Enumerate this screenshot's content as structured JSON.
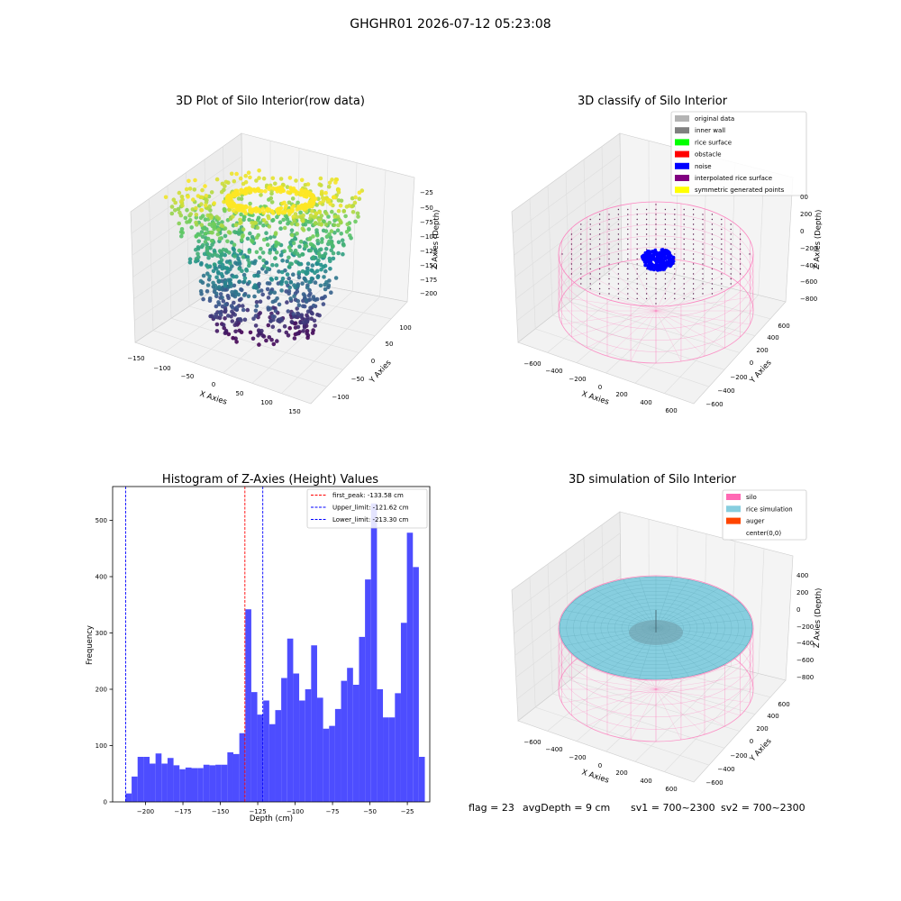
{
  "suptitle": "GHGHR01 2026-07-12 05:23:08",
  "footer": {
    "flag": "flag = 23",
    "avg_depth": "avgDepth = 9 cm",
    "sv1": "sv1 = 700~2300",
    "sv2": "sv2 = 700~2300"
  },
  "colors": {
    "hist_bar": "#4d4dff",
    "peak_line": "#ff0000",
    "limit_line": "#0000ff",
    "silo": "#ff69b4",
    "rice": "#87cedf",
    "auger": "#ff4500",
    "noise": "#0000ff"
  },
  "chart_data": [
    {
      "type": "scatter",
      "subtype": "3d",
      "title": "3D Plot of Silo Interior(row data)",
      "xlabel": "X Axies",
      "ylabel": "Y Axies",
      "zlabel": "Z Axies (Depth)",
      "x_ticks": [
        "−150",
        "−100",
        "−50",
        "0",
        "50",
        "100",
        "150"
      ],
      "y_ticks": [
        "−100",
        "−50",
        "0",
        "50",
        "100"
      ],
      "z_ticks": [
        "−25",
        "−50",
        "−75",
        "−100",
        "−125",
        "−150",
        "−175",
        "−200"
      ],
      "colormap": "viridis"
    },
    {
      "type": "scatter",
      "subtype": "3d",
      "title": "3D classify of Silo Interior",
      "xlabel": "X Axies",
      "ylabel": "Y Axies",
      "zlabel": "Z Axies (Depth)",
      "x_ticks": [
        "−600",
        "−400",
        "−200",
        "0",
        "200",
        "400",
        "600"
      ],
      "y_ticks": [
        "−600",
        "−400",
        "−200",
        "0",
        "200",
        "400",
        "600"
      ],
      "z_ticks": [
        "200",
        "0",
        "−200",
        "−400",
        "−600",
        "−800"
      ],
      "z_top_partial": "00",
      "legend": [
        {
          "label": "original data",
          "color": "#b3b3b3"
        },
        {
          "label": "inner wall",
          "color": "#808080"
        },
        {
          "label": "rice surface",
          "color": "#00ff00"
        },
        {
          "label": "obstacle",
          "color": "#ff0000"
        },
        {
          "label": "noise",
          "color": "#0000ff"
        },
        {
          "label": "interpolated rice surface",
          "color": "#800080"
        },
        {
          "label": "symmetric generated points",
          "color": "#ffff00"
        }
      ],
      "legend_position": "top-right"
    },
    {
      "type": "bar",
      "subtype": "histogram",
      "title": "Histogram of Z-Axies (Height) Values",
      "xlabel": "Depth (cm)",
      "ylabel": "Frequency",
      "xlim": [
        -222,
        -10
      ],
      "ylim": [
        0,
        560
      ],
      "bin_start": -213.3,
      "bin_width": 4.0,
      "values": [
        15,
        45,
        80,
        80,
        68,
        86,
        68,
        78,
        65,
        58,
        61,
        60,
        60,
        66,
        65,
        66,
        66,
        88,
        85,
        122,
        342,
        195,
        155,
        180,
        138,
        163,
        220,
        290,
        228,
        180,
        200,
        278,
        185,
        130,
        135,
        165,
        215,
        238,
        208,
        293,
        395,
        530,
        200,
        150,
        150,
        193,
        318,
        478,
        417,
        80
      ],
      "x_ticks": [
        "−200",
        "−175",
        "−150",
        "−125",
        "−100",
        "−75",
        "−50",
        "−25"
      ],
      "x_tick_values": [
        -200,
        -175,
        -150,
        -125,
        -100,
        -75,
        -50,
        -25
      ],
      "y_ticks": [
        "0",
        "100",
        "200",
        "300",
        "400",
        "500"
      ],
      "y_tick_values": [
        0,
        100,
        200,
        300,
        400,
        500
      ],
      "lines": [
        {
          "label": "first_peak: -133.58 cm",
          "x": -133.58,
          "color": "#ff0000"
        },
        {
          "label": "Upper_limit: -121.62 cm",
          "x": -121.62,
          "color": "#0000ff"
        },
        {
          "label": "Lower_limit: -213.30 cm",
          "x": -213.3,
          "color": "#0000ff"
        }
      ],
      "legend_position": "top-right"
    },
    {
      "type": "area",
      "subtype": "3d-surface",
      "title": "3D simulation of Silo Interior",
      "xlabel": "X Axies",
      "ylabel": "Y Axies",
      "zlabel": "Z Axies (Depth)",
      "x_ticks": [
        "−600",
        "−400",
        "−200",
        "0",
        "200",
        "400",
        "600"
      ],
      "y_ticks": [
        "−600",
        "−400",
        "−200",
        "0",
        "200",
        "400",
        "600"
      ],
      "z_ticks": [
        "400",
        "200",
        "0",
        "−200",
        "−400",
        "−600",
        "−800"
      ],
      "legend": [
        {
          "label": "silo",
          "color": "#ff69b4"
        },
        {
          "label": "rice simulation",
          "color": "#87cedf"
        },
        {
          "label": "auger",
          "color": "#ff4500"
        },
        {
          "label": "center(0,0)",
          "color": ""
        }
      ],
      "legend_position": "top-right"
    }
  ]
}
